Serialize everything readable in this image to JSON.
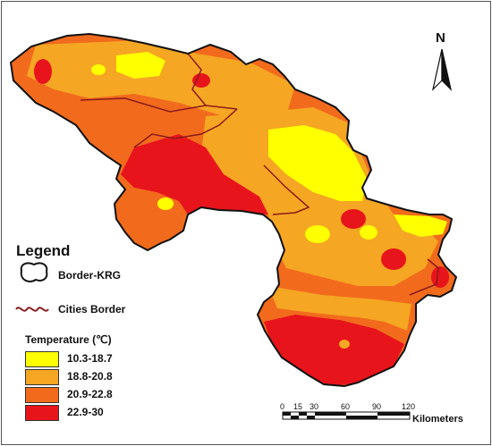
{
  "legend": {
    "title": "Legend",
    "border_krg": "Border-KRG",
    "cities_border": "Cities Border",
    "temperature_title": "Temperature (℃)",
    "classes": [
      {
        "label": "10.3-18.7",
        "color": "#ffff00"
      },
      {
        "label": "18.8-20.8",
        "color": "#f5a623"
      },
      {
        "label": "20.9-22.8",
        "color": "#f26b1d"
      },
      {
        "label": "22.9-30",
        "color": "#e8141c"
      }
    ]
  },
  "north_arrow": {
    "label": "N"
  },
  "scale_bar": {
    "ticks": [
      "0",
      "15",
      "30",
      "60",
      "90",
      "120"
    ],
    "unit": "Kilometers"
  },
  "colors": {
    "border": "#111111",
    "cities_border": "#8b1a1a"
  }
}
